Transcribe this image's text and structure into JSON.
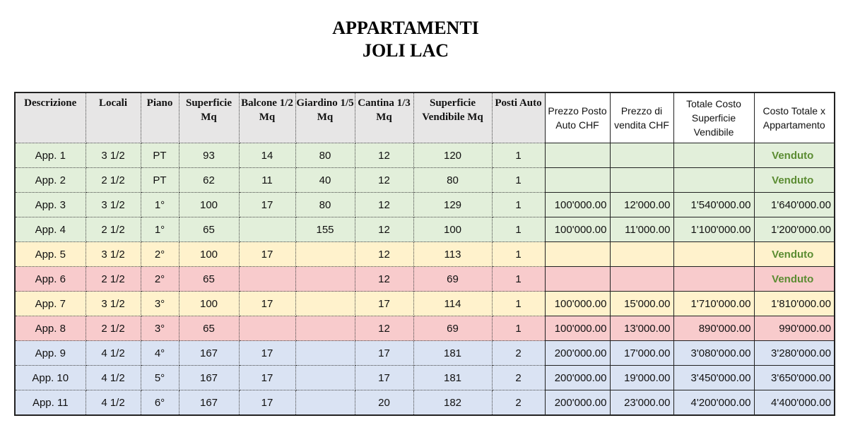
{
  "title": [
    "APPARTAMENTI",
    "JOLI LAC"
  ],
  "headers": [
    "Descrizione",
    "Locali",
    "Piano",
    "Superficie Mq",
    "Balcone 1/2 Mq",
    "Giardino 1/5 Mq",
    "Cantina 1/3 Mq",
    "Superficie Vendibile Mq",
    "Posti Auto",
    "Prezzo Posto Auto CHF",
    "Prezzo di vendita CHF",
    "Totale Costo Superficie Vendibile",
    "Costo Totale x Appartamento"
  ],
  "colors": {
    "green": "#e2efda",
    "yellow": "#fff2cc",
    "red": "#f8cbcc",
    "blue": "#dae3f3",
    "sold": "#5b8c32"
  },
  "rows": [
    {
      "group": "green",
      "cells": [
        "App. 1",
        "3 1/2",
        "PT",
        "93",
        "14",
        "80",
        "12",
        "120",
        "1",
        "",
        "",
        "",
        "Venduto"
      ]
    },
    {
      "group": "green",
      "cells": [
        "App. 2",
        "2 1/2",
        "PT",
        "62",
        "11",
        "40",
        "12",
        "80",
        "1",
        "",
        "",
        "",
        "Venduto"
      ]
    },
    {
      "group": "green",
      "cells": [
        "App. 3",
        "3 1/2",
        "1°",
        "100",
        "17",
        "80",
        "12",
        "129",
        "1",
        "100'000.00",
        "12'000.00",
        "1'540'000.00",
        "1'640'000.00"
      ]
    },
    {
      "group": "green",
      "cells": [
        "App. 4",
        "2 1/2",
        "1°",
        "65",
        "",
        "155",
        "12",
        "100",
        "1",
        "100'000.00",
        "11'000.00",
        "1'100'000.00",
        "1'200'000.00"
      ]
    },
    {
      "group": "yellow",
      "cells": [
        "App. 5",
        "3 1/2",
        "2°",
        "100",
        "17",
        "",
        "12",
        "113",
        "1",
        "",
        "",
        "",
        "Venduto"
      ]
    },
    {
      "group": "red",
      "cells": [
        "App. 6",
        "2 1/2",
        "2°",
        "65",
        "",
        "",
        "12",
        "69",
        "1",
        "",
        "",
        "",
        "Venduto"
      ]
    },
    {
      "group": "yellow",
      "cells": [
        "App. 7",
        "3 1/2",
        "3°",
        "100",
        "17",
        "",
        "17",
        "114",
        "1",
        "100'000.00",
        "15'000.00",
        "1'710'000.00",
        "1'810'000.00"
      ]
    },
    {
      "group": "red",
      "cells": [
        "App. 8",
        "2 1/2",
        "3°",
        "65",
        "",
        "",
        "12",
        "69",
        "1",
        "100'000.00",
        "13'000.00",
        "890'000.00",
        "990'000.00"
      ]
    },
    {
      "group": "blue",
      "cells": [
        "App. 9",
        "4 1/2",
        "4°",
        "167",
        "17",
        "",
        "17",
        "181",
        "2",
        "200'000.00",
        "17'000.00",
        "3'080'000.00",
        "3'280'000.00"
      ]
    },
    {
      "group": "blue",
      "cells": [
        "App. 10",
        "4 1/2",
        "5°",
        "167",
        "17",
        "",
        "17",
        "181",
        "2",
        "200'000.00",
        "19'000.00",
        "3'450'000.00",
        "3'650'000.00"
      ]
    },
    {
      "group": "blue",
      "cells": [
        "App. 11",
        "4 1/2",
        "6°",
        "167",
        "17",
        "",
        "20",
        "182",
        "2",
        "200'000.00",
        "23'000.00",
        "4'200'000.00",
        "4'400'000.00"
      ]
    }
  ]
}
